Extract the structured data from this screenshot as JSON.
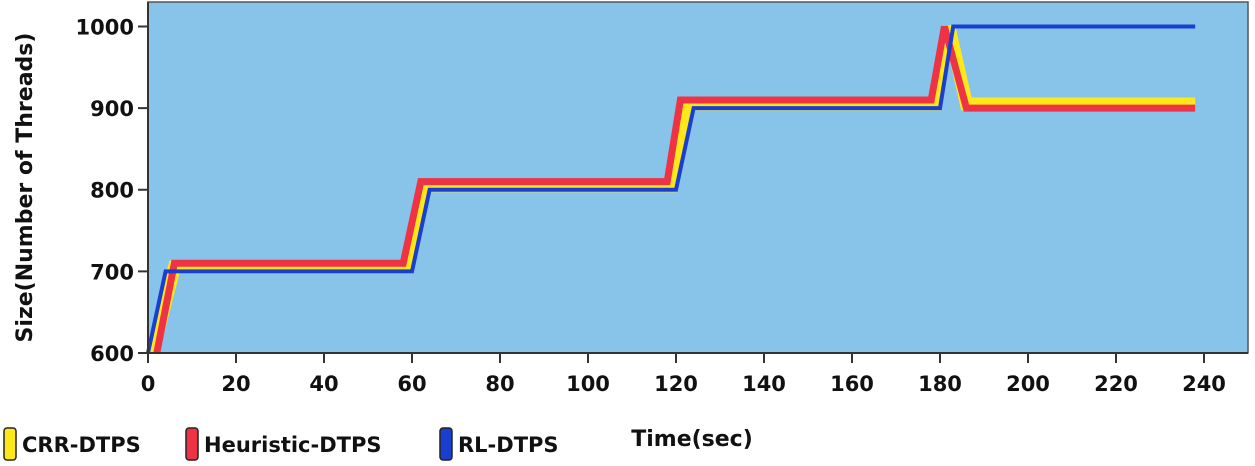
{
  "chart_data": {
    "type": "line",
    "title": "",
    "xlabel": "Time(sec)",
    "ylabel": "Size(Number of Threads)",
    "xlim": [
      0,
      250
    ],
    "ylim": [
      600,
      1030
    ],
    "xticks": [
      0,
      20,
      40,
      60,
      80,
      100,
      120,
      140,
      160,
      180,
      200,
      220,
      240
    ],
    "yticks": [
      600,
      700,
      800,
      900,
      1000
    ],
    "grid": false,
    "background_color": "#88c4ea",
    "legend_position": "bottom-left",
    "series": [
      {
        "name": "CRR-DTPS",
        "color": "#ffe81a",
        "points": [
          [
            1,
            600
          ],
          [
            6,
            705
          ],
          [
            59,
            705
          ],
          [
            63,
            805
          ],
          [
            119,
            805
          ],
          [
            123,
            905
          ],
          [
            179,
            905
          ],
          [
            182,
            1000
          ],
          [
            186,
            905
          ],
          [
            238,
            905
          ]
        ]
      },
      {
        "name": "Heuristic-DTPS",
        "color": "#ee3344",
        "points": [
          [
            2,
            600
          ],
          [
            6,
            710
          ],
          [
            58,
            710
          ],
          [
            62,
            810
          ],
          [
            118,
            810
          ],
          [
            121,
            910
          ],
          [
            178,
            910
          ],
          [
            181,
            1000
          ],
          [
            186,
            900
          ],
          [
            238,
            900
          ]
        ]
      },
      {
        "name": "RL-DTPS",
        "color": "#1a3fd0",
        "points": [
          [
            0,
            600
          ],
          [
            4,
            700
          ],
          [
            60,
            700
          ],
          [
            64,
            800
          ],
          [
            120,
            800
          ],
          [
            124,
            900
          ],
          [
            180,
            900
          ],
          [
            183,
            1000
          ],
          [
            238,
            1000
          ]
        ]
      }
    ]
  }
}
